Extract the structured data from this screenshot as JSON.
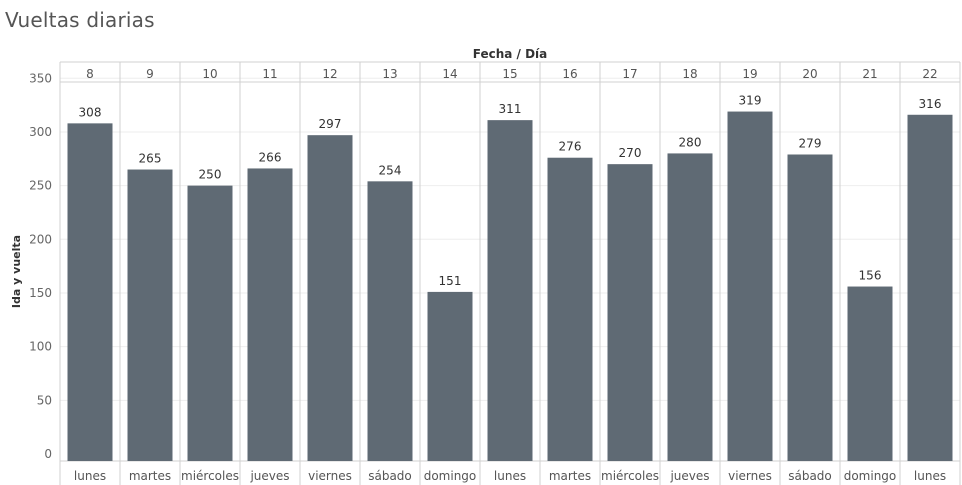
{
  "title": "Vueltas diarias",
  "chart_data": {
    "type": "bar",
    "title": "Vueltas diarias",
    "xlabel": "Fecha / Día",
    "ylabel": "Ida y vuelta",
    "ylim": [
      0,
      350
    ],
    "yticks": [
      0,
      50,
      100,
      150,
      200,
      250,
      300,
      350
    ],
    "grid": true,
    "categories": [
      "8",
      "9",
      "10",
      "11",
      "12",
      "13",
      "14",
      "15",
      "16",
      "17",
      "18",
      "19",
      "20",
      "21",
      "22"
    ],
    "days": [
      "lunes",
      "martes",
      "miércoles",
      "jueves",
      "viernes",
      "sábado",
      "domingo",
      "lunes",
      "martes",
      "miércoles",
      "jueves",
      "viernes",
      "sábado",
      "domingo",
      "lunes"
    ],
    "values": [
      308,
      265,
      250,
      266,
      297,
      254,
      151,
      311,
      276,
      270,
      280,
      319,
      279,
      156,
      316
    ],
    "bar_color": "#5f6a74"
  }
}
